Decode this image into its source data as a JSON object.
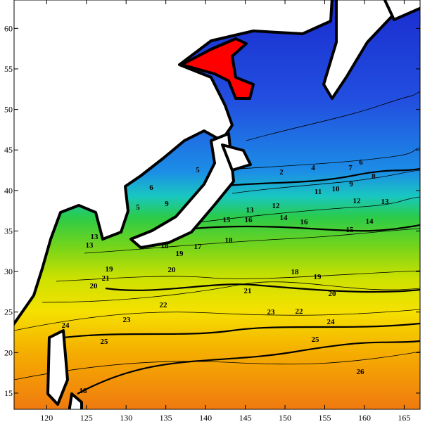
{
  "map": {
    "xlim": [
      115.9,
      167
    ],
    "ylim": [
      13,
      63.5
    ],
    "xticks": [
      120,
      125,
      130,
      135,
      140,
      145,
      150,
      155,
      160,
      165
    ],
    "yticks": [
      15,
      20,
      25,
      30,
      35,
      40,
      45,
      50,
      55,
      60
    ],
    "contour_labels": [
      24,
      25,
      23,
      22,
      21,
      20,
      19,
      18,
      18,
      18,
      19,
      20,
      23,
      22,
      24,
      25,
      26,
      21,
      20,
      19,
      17,
      16,
      15,
      14,
      16,
      15,
      14,
      13,
      12,
      13,
      12,
      11,
      10,
      9,
      8,
      7,
      6,
      9,
      5,
      6,
      5,
      2,
      4,
      18,
      13,
      13
    ]
  }
}
